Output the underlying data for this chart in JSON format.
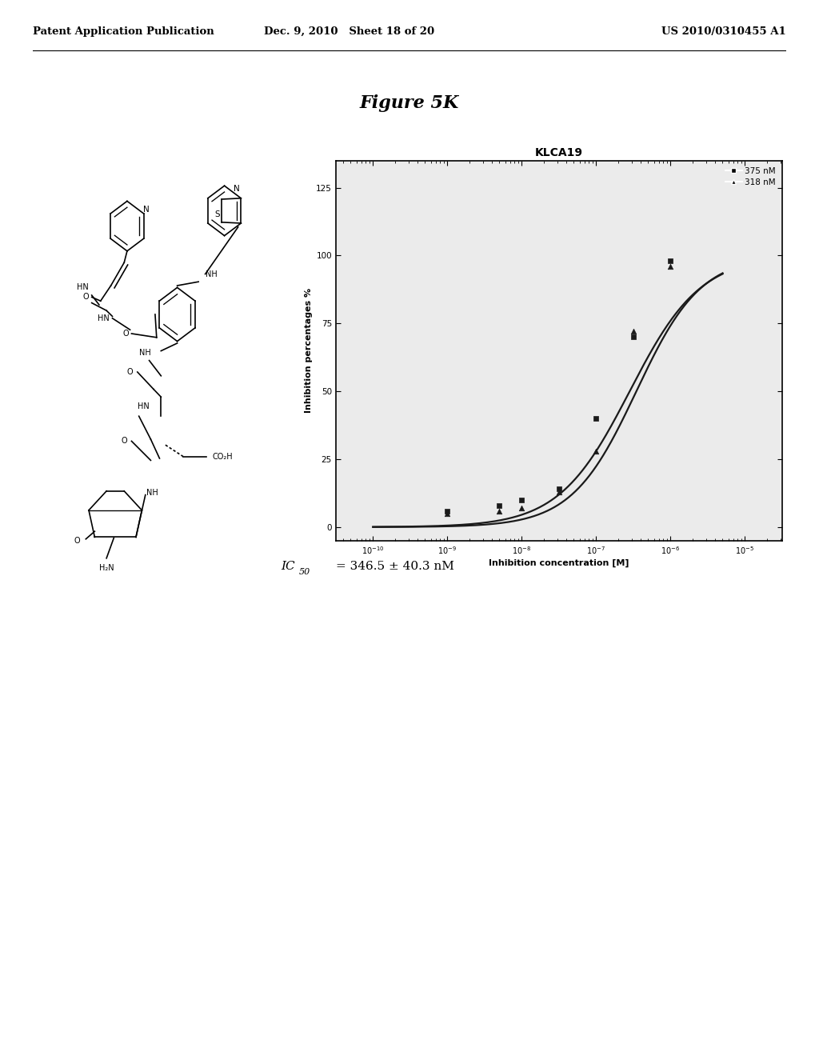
{
  "header_left": "Patent Application Publication",
  "header_mid": "Dec. 9, 2010   Sheet 18 of 20",
  "header_right": "US 2010/0310455 A1",
  "figure_title": "Figure 5K",
  "plot_title": "KLCA19",
  "xlabel": "Inhibition concentration [M]",
  "ylabel": "Inhibition percentages %",
  "ic50_text": "IC50 = 346.5 ± 40.3 nM",
  "legend_1": "375 nM",
  "legend_2": "318 nM",
  "ytick_values": [
    0,
    25,
    50,
    75,
    100,
    125
  ],
  "ylim": [
    -5,
    135
  ],
  "scatter1_x": [
    -9.0,
    -8.3,
    -8.0,
    -7.5,
    -7.0,
    -6.5,
    -6.0
  ],
  "scatter1_y": [
    6,
    8,
    10,
    14,
    40,
    70,
    98
  ],
  "scatter2_x": [
    -9.0,
    -8.3,
    -8.0,
    -7.5,
    -7.0,
    -6.5,
    -6.0
  ],
  "scatter2_y": [
    5,
    6,
    7,
    13,
    28,
    72,
    96
  ],
  "bg_color": "#ffffff",
  "plot_bg": "#ebebeb",
  "line_color": "#1a1a1a",
  "marker_color": "#1a1a1a"
}
